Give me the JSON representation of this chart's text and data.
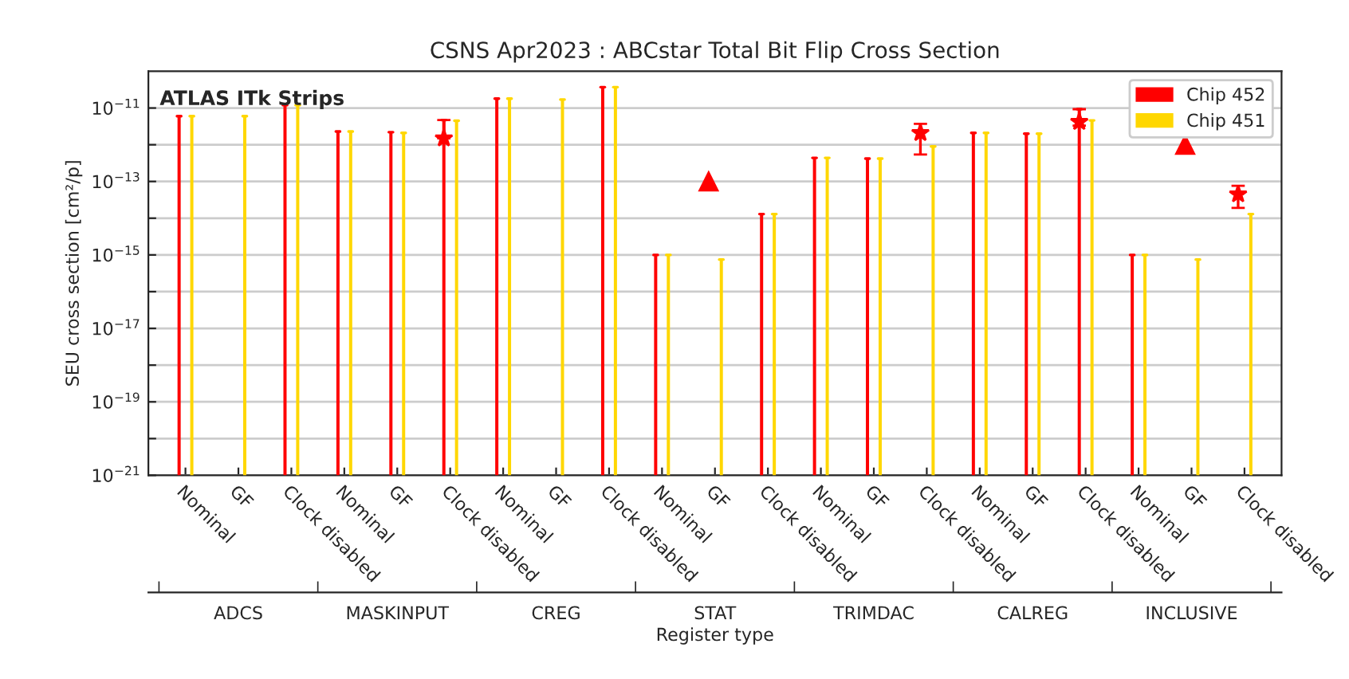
{
  "chart_data": {
    "type": "bar",
    "title": "CSNS Apr2023 : ABCstar Total Bit Flip Cross Section",
    "subtitle": "ATLAS ITk Strips",
    "xlabel": "Register type",
    "ylabel": "SEU cross section [cm²/p]",
    "categories": [
      "Nominal",
      "GF",
      "Clock disabled",
      "Nominal",
      "GF",
      "Clock disabled",
      "Nominal",
      "GF",
      "Clock disabled",
      "Nominal",
      "GF",
      "Clock disabled",
      "Nominal",
      "GF",
      "Clock disabled",
      "Nominal",
      "GF",
      "Clock disabled",
      "Nominal",
      "GF",
      "Clock disabled"
    ],
    "annotations": [
      "ADCS",
      "MASKINPUT",
      "CREG",
      "STAT",
      "TRIMDAC",
      "CALREG",
      "INCLUSIVE"
    ],
    "series": [
      {
        "name": "Chip 452",
        "color": "#ff0000",
        "values": [
          6e-12,
          null,
          1.2e-11,
          2.3e-12,
          2.2e-12,
          4.7e-12,
          1.8e-11,
          null,
          3.7e-11,
          1e-15,
          null,
          1.3e-14,
          4.4e-13,
          4.2e-13,
          null,
          2.1e-12,
          2e-12,
          9.3e-12,
          1e-15,
          null,
          null
        ]
      },
      {
        "name": "Chip 451",
        "color": "#ffd700",
        "values": [
          6e-12,
          6e-12,
          1.2e-11,
          2.3e-12,
          2.1e-12,
          4.5e-12,
          1.8e-11,
          1.7e-11,
          3.7e-11,
          1e-15,
          7.5e-16,
          1.3e-14,
          4.4e-13,
          4.2e-13,
          9e-13,
          2.1e-12,
          2e-12,
          4.6e-12,
          1e-15,
          7.5e-16,
          1.3e-14
        ]
      },
      {
        "type": "scatter",
        "color": "#ff0000",
        "marker": "triangle",
        "values": [
          null,
          null,
          null,
          null,
          null,
          null,
          null,
          null,
          null,
          null,
          1e-13,
          null,
          null,
          null,
          null,
          null,
          null,
          null,
          null,
          1e-12,
          null
        ]
      },
      {
        "type": "scatter",
        "color": "#ff0000",
        "marker": "star",
        "values": [
          null,
          null,
          null,
          null,
          null,
          1.5e-12,
          null,
          null,
          null,
          null,
          null,
          null,
          null,
          null,
          2.1e-12,
          null,
          null,
          4.2e-12,
          null,
          null,
          4.5e-14
        ],
        "errors": [
          null,
          null,
          null,
          null,
          null,
          [
            1.5e-12,
            4.7e-12
          ],
          null,
          null,
          null,
          null,
          null,
          null,
          null,
          null,
          [
            5.4e-13,
            3.7e-12
          ],
          null,
          null,
          [
            3.3e-12,
            9.3e-12
          ],
          null,
          null,
          [
            1.9e-14,
            7.6e-14
          ]
        ]
      }
    ],
    "log": "y",
    "ylim": [
      1e-21,
      1e-10
    ],
    "yticks": [
      {
        "value": 1e-21,
        "label": "10$^{−21}$"
      },
      {
        "value": 1e-20,
        "label": null
      },
      {
        "value": 1e-19,
        "label": "10$^{−19}$"
      },
      {
        "value": 1e-18,
        "label": null
      },
      {
        "value": 1e-17,
        "label": "10$^{−17}$"
      },
      {
        "value": 1e-16,
        "label": null
      },
      {
        "value": 1e-15,
        "label": "10$^{−15}$"
      },
      {
        "value": 1e-14,
        "label": null
      },
      {
        "value": 1e-13,
        "label": "10$^{−13}$"
      },
      {
        "value": 1e-12,
        "label": null
      },
      {
        "value": 1e-11,
        "label": "10$^{−11}$"
      }
    ],
    "grid": "y",
    "legend": "top right"
  }
}
